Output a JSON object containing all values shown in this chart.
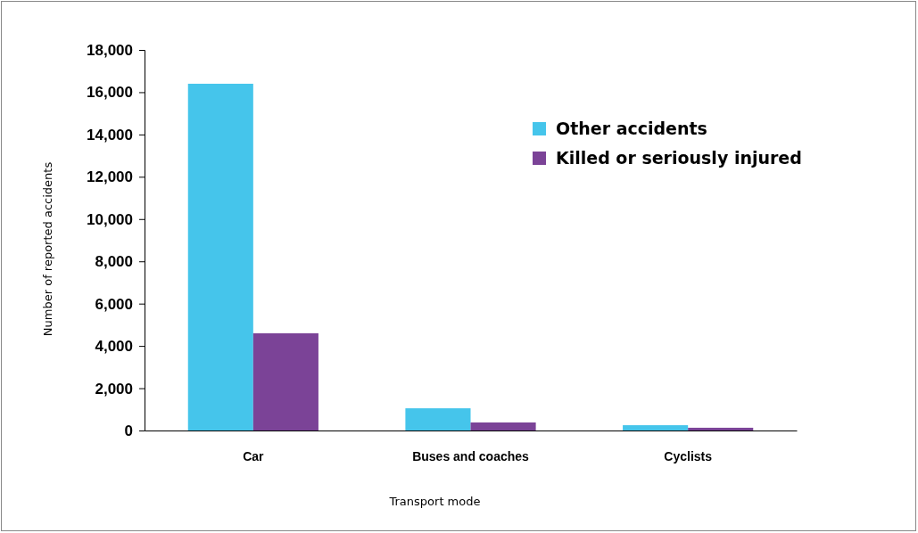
{
  "chart_data": {
    "type": "bar",
    "xlabel": "Transport mode",
    "ylabel": "Number of reported accidents",
    "categories": [
      "Car",
      "Buses and coaches",
      "Cyclists"
    ],
    "series": [
      {
        "name": "Other accidents",
        "color": "#45c5eb",
        "values": [
          16400,
          1050,
          250
        ]
      },
      {
        "name": "Killed or seriously injured",
        "color": "#7b4397",
        "values": [
          4600,
          380,
          130
        ]
      }
    ],
    "ylim": [
      0,
      18000
    ],
    "yticks": [
      {
        "value": 0,
        "label": "0"
      },
      {
        "value": 2000,
        "label": "2,000"
      },
      {
        "value": 4000,
        "label": "4,000"
      },
      {
        "value": 6000,
        "label": "6,000"
      },
      {
        "value": 8000,
        "label": "8,000"
      },
      {
        "value": 10000,
        "label": "10,000"
      },
      {
        "value": 12000,
        "label": "12,000"
      },
      {
        "value": 14000,
        "label": "14,000"
      },
      {
        "value": 16000,
        "label": "16,000"
      },
      {
        "value": 18000,
        "label": "18,000"
      }
    ],
    "grid": false,
    "legend": "top right"
  }
}
